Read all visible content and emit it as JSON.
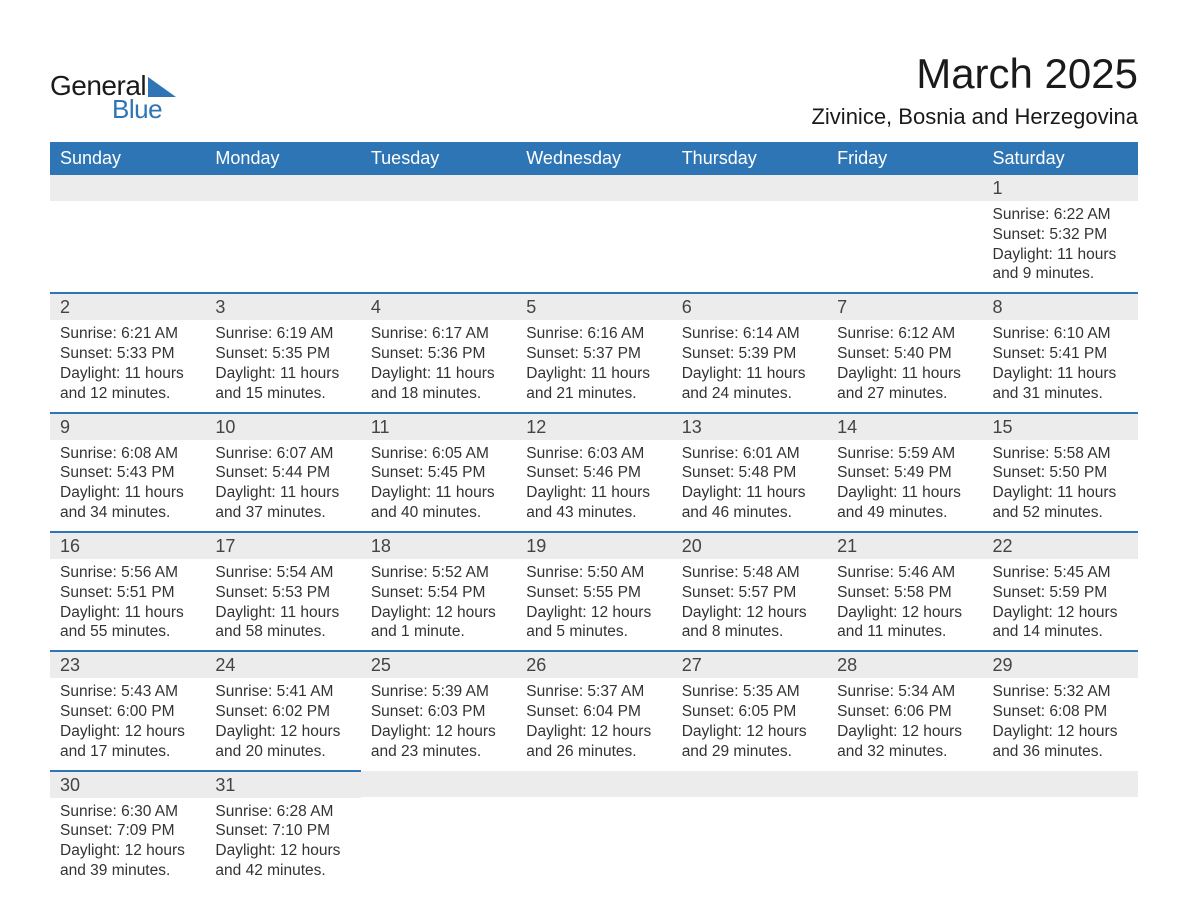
{
  "logo": {
    "word1": "General",
    "word2": "Blue"
  },
  "header": {
    "title": "March 2025",
    "location": "Zivinice, Bosnia and Herzegovina"
  },
  "calendar": {
    "columns": [
      "Sunday",
      "Monday",
      "Tuesday",
      "Wednesday",
      "Thursday",
      "Friday",
      "Saturday"
    ],
    "header_bg": "#2e75b6",
    "header_fg": "#ffffff",
    "daynum_bg": "#ececec",
    "border_color": "#2e75b6",
    "text_color": "#333333",
    "font_size_header": 18,
    "font_size_daynum": 18,
    "font_size_body": 15.5,
    "weeks": [
      [
        null,
        null,
        null,
        null,
        null,
        null,
        {
          "n": "1",
          "sunrise": "6:22 AM",
          "sunset": "5:32 PM",
          "daylight": "11 hours and 9 minutes."
        }
      ],
      [
        {
          "n": "2",
          "sunrise": "6:21 AM",
          "sunset": "5:33 PM",
          "daylight": "11 hours and 12 minutes."
        },
        {
          "n": "3",
          "sunrise": "6:19 AM",
          "sunset": "5:35 PM",
          "daylight": "11 hours and 15 minutes."
        },
        {
          "n": "4",
          "sunrise": "6:17 AM",
          "sunset": "5:36 PM",
          "daylight": "11 hours and 18 minutes."
        },
        {
          "n": "5",
          "sunrise": "6:16 AM",
          "sunset": "5:37 PM",
          "daylight": "11 hours and 21 minutes."
        },
        {
          "n": "6",
          "sunrise": "6:14 AM",
          "sunset": "5:39 PM",
          "daylight": "11 hours and 24 minutes."
        },
        {
          "n": "7",
          "sunrise": "6:12 AM",
          "sunset": "5:40 PM",
          "daylight": "11 hours and 27 minutes."
        },
        {
          "n": "8",
          "sunrise": "6:10 AM",
          "sunset": "5:41 PM",
          "daylight": "11 hours and 31 minutes."
        }
      ],
      [
        {
          "n": "9",
          "sunrise": "6:08 AM",
          "sunset": "5:43 PM",
          "daylight": "11 hours and 34 minutes."
        },
        {
          "n": "10",
          "sunrise": "6:07 AM",
          "sunset": "5:44 PM",
          "daylight": "11 hours and 37 minutes."
        },
        {
          "n": "11",
          "sunrise": "6:05 AM",
          "sunset": "5:45 PM",
          "daylight": "11 hours and 40 minutes."
        },
        {
          "n": "12",
          "sunrise": "6:03 AM",
          "sunset": "5:46 PM",
          "daylight": "11 hours and 43 minutes."
        },
        {
          "n": "13",
          "sunrise": "6:01 AM",
          "sunset": "5:48 PM",
          "daylight": "11 hours and 46 minutes."
        },
        {
          "n": "14",
          "sunrise": "5:59 AM",
          "sunset": "5:49 PM",
          "daylight": "11 hours and 49 minutes."
        },
        {
          "n": "15",
          "sunrise": "5:58 AM",
          "sunset": "5:50 PM",
          "daylight": "11 hours and 52 minutes."
        }
      ],
      [
        {
          "n": "16",
          "sunrise": "5:56 AM",
          "sunset": "5:51 PM",
          "daylight": "11 hours and 55 minutes."
        },
        {
          "n": "17",
          "sunrise": "5:54 AM",
          "sunset": "5:53 PM",
          "daylight": "11 hours and 58 minutes."
        },
        {
          "n": "18",
          "sunrise": "5:52 AM",
          "sunset": "5:54 PM",
          "daylight": "12 hours and 1 minute."
        },
        {
          "n": "19",
          "sunrise": "5:50 AM",
          "sunset": "5:55 PM",
          "daylight": "12 hours and 5 minutes."
        },
        {
          "n": "20",
          "sunrise": "5:48 AM",
          "sunset": "5:57 PM",
          "daylight": "12 hours and 8 minutes."
        },
        {
          "n": "21",
          "sunrise": "5:46 AM",
          "sunset": "5:58 PM",
          "daylight": "12 hours and 11 minutes."
        },
        {
          "n": "22",
          "sunrise": "5:45 AM",
          "sunset": "5:59 PM",
          "daylight": "12 hours and 14 minutes."
        }
      ],
      [
        {
          "n": "23",
          "sunrise": "5:43 AM",
          "sunset": "6:00 PM",
          "daylight": "12 hours and 17 minutes."
        },
        {
          "n": "24",
          "sunrise": "5:41 AM",
          "sunset": "6:02 PM",
          "daylight": "12 hours and 20 minutes."
        },
        {
          "n": "25",
          "sunrise": "5:39 AM",
          "sunset": "6:03 PM",
          "daylight": "12 hours and 23 minutes."
        },
        {
          "n": "26",
          "sunrise": "5:37 AM",
          "sunset": "6:04 PM",
          "daylight": "12 hours and 26 minutes."
        },
        {
          "n": "27",
          "sunrise": "5:35 AM",
          "sunset": "6:05 PM",
          "daylight": "12 hours and 29 minutes."
        },
        {
          "n": "28",
          "sunrise": "5:34 AM",
          "sunset": "6:06 PM",
          "daylight": "12 hours and 32 minutes."
        },
        {
          "n": "29",
          "sunrise": "5:32 AM",
          "sunset": "6:08 PM",
          "daylight": "12 hours and 36 minutes."
        }
      ],
      [
        {
          "n": "30",
          "sunrise": "6:30 AM",
          "sunset": "7:09 PM",
          "daylight": "12 hours and 39 minutes."
        },
        {
          "n": "31",
          "sunrise": "6:28 AM",
          "sunset": "7:10 PM",
          "daylight": "12 hours and 42 minutes."
        },
        null,
        null,
        null,
        null,
        null
      ]
    ],
    "labels": {
      "sunrise_prefix": "Sunrise: ",
      "sunset_prefix": "Sunset: ",
      "daylight_prefix": "Daylight: "
    }
  }
}
